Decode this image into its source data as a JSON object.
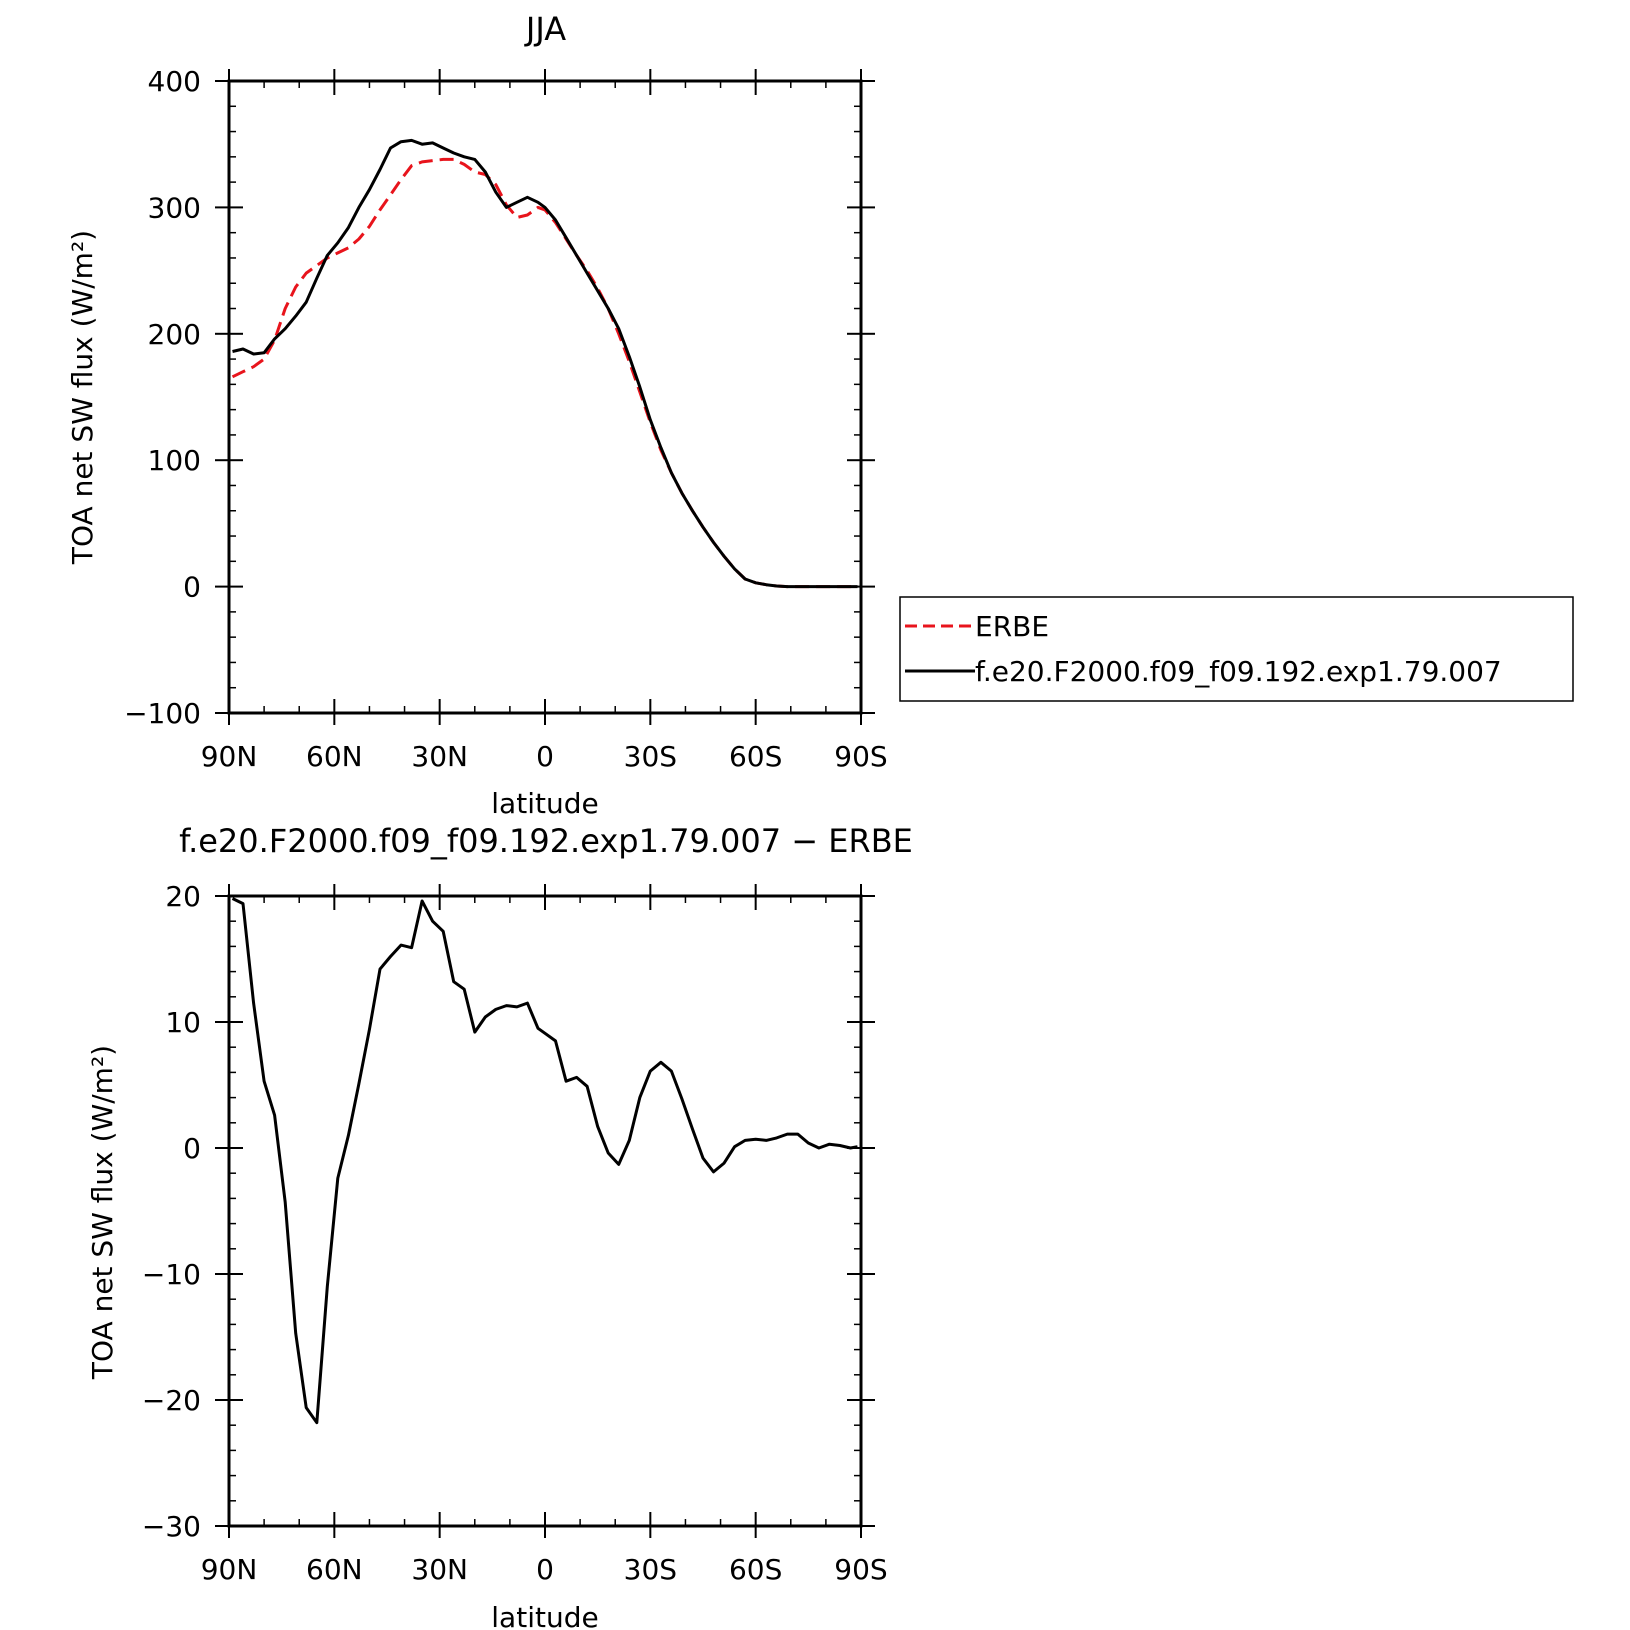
{
  "chart_data": [
    {
      "type": "line",
      "title": "JJA",
      "xlabel": "latitude",
      "ylabel": "TOA net SW flux (W/m²)",
      "ylim": [
        -100,
        400
      ],
      "yticks": [
        -100,
        0,
        100,
        200,
        300,
        400
      ],
      "xlim": [
        90,
        -90
      ],
      "xticks": [
        90,
        60,
        30,
        0,
        -30,
        -60,
        -90
      ],
      "xtick_labels": [
        "90N",
        "60N",
        "30N",
        "0",
        "30S",
        "60S",
        "90S"
      ],
      "legend": "right",
      "series": [
        {
          "name": "ERBE",
          "color": "#e8141c",
          "dash": "dashed",
          "x": [
            89,
            86,
            83,
            80,
            77,
            74,
            71,
            68,
            65,
            62,
            59,
            56,
            53,
            50,
            47,
            44,
            41,
            38,
            35,
            32,
            29,
            26,
            23,
            20,
            17,
            14,
            11,
            8,
            5,
            2,
            0,
            -3,
            -6,
            -9,
            -12,
            -15,
            -18,
            -21,
            -24,
            -27,
            -30,
            -33,
            -36,
            -39,
            -42,
            -45,
            -48,
            -51,
            -54,
            -57,
            -60,
            -63,
            -66,
            -69,
            -72,
            -75,
            -78,
            -81,
            -84,
            -87,
            -89
          ],
          "y": [
            166,
            170,
            174,
            180,
            195,
            220,
            237,
            248,
            254,
            260,
            264,
            268,
            275,
            285,
            298,
            310,
            322,
            333,
            336,
            337,
            338,
            338,
            334,
            328,
            326,
            318,
            302,
            292,
            294,
            300,
            298,
            288,
            275,
            262,
            250,
            236,
            220,
            200,
            178,
            154,
            130,
            108,
            90,
            74,
            60,
            47,
            35,
            24,
            14,
            6,
            3,
            1.5,
            0.5,
            0,
            0,
            0,
            0,
            0,
            0,
            0,
            0
          ]
        },
        {
          "name": "f.e20.F2000.f09_f09.192.exp1.79.007",
          "color": "#000000",
          "dash": "solid",
          "x": [
            89,
            86,
            83,
            80,
            77,
            74,
            71,
            68,
            65,
            62,
            59,
            56,
            53,
            50,
            47,
            44,
            41,
            38,
            35,
            32,
            29,
            26,
            23,
            20,
            17,
            14,
            11,
            8,
            5,
            2,
            0,
            -3,
            -6,
            -9,
            -12,
            -15,
            -18,
            -21,
            -24,
            -27,
            -30,
            -33,
            -36,
            -39,
            -42,
            -45,
            -48,
            -51,
            -54,
            -57,
            -60,
            -63,
            -66,
            -69,
            -72,
            -75,
            -78,
            -81,
            -84,
            -87,
            -89
          ],
          "y": [
            186,
            188,
            184,
            185,
            196,
            204,
            214,
            225,
            244,
            262,
            272,
            284,
            300,
            314,
            330,
            347,
            352,
            353,
            350,
            351,
            347,
            343,
            340,
            338,
            328,
            312,
            300,
            304,
            308,
            304,
            300,
            290,
            276,
            262,
            248,
            234,
            220,
            204,
            182,
            158,
            132,
            110,
            90,
            74,
            60,
            47,
            35,
            24,
            14,
            6,
            3,
            1.5,
            0.5,
            0,
            0,
            0,
            0,
            0,
            0,
            0,
            0
          ]
        }
      ]
    },
    {
      "type": "line",
      "title": "f.e20.F2000.f09_f09.192.exp1.79.007 − ERBE",
      "xlabel": "latitude",
      "ylabel": "TOA net SW flux (W/m²)",
      "ylim": [
        -30,
        20
      ],
      "yticks": [
        -30,
        -20,
        -10,
        0,
        10,
        20
      ],
      "xlim": [
        90,
        -90
      ],
      "xticks": [
        90,
        60,
        30,
        0,
        -30,
        -60,
        -90
      ],
      "xtick_labels": [
        "90N",
        "60N",
        "30N",
        "0",
        "30S",
        "60S",
        "90S"
      ],
      "series": [
        {
          "color": "#000000",
          "dash": "solid",
          "x": [
            89,
            86,
            83,
            80,
            77,
            74,
            71,
            68,
            65,
            62,
            59,
            56,
            53,
            50,
            47,
            44,
            41,
            38,
            35,
            32,
            29,
            26,
            23,
            20,
            17,
            14,
            11,
            8,
            5,
            2,
            0,
            -3,
            -6,
            -9,
            -12,
            -15,
            -18,
            -21,
            -24,
            -27,
            -30,
            -33,
            -36,
            -39,
            -42,
            -45,
            -48,
            -51,
            -54,
            -57,
            -60,
            -63,
            -66,
            -69,
            -72,
            -75,
            -78,
            -81,
            -84,
            -87,
            -89
          ],
          "y": [
            19.8,
            19.4,
            11.5,
            5.3,
            2.6,
            -4.3,
            -14.7,
            -20.6,
            -21.8,
            -11.0,
            -2.4,
            1.0,
            5.1,
            9.4,
            14.2,
            15.2,
            16.1,
            15.9,
            19.6,
            18.0,
            17.2,
            13.2,
            12.6,
            9.2,
            10.4,
            11.0,
            11.3,
            11.2,
            11.5,
            9.5,
            9.1,
            8.5,
            5.3,
            5.6,
            4.9,
            1.7,
            -0.4,
            -1.3,
            0.6,
            4.0,
            6.1,
            6.8,
            6.1,
            3.9,
            1.5,
            -0.8,
            -1.9,
            -1.2,
            0.1,
            0.6,
            0.7,
            0.6,
            0.8,
            1.1,
            1.1,
            0.4,
            0.0,
            0.3,
            0.2,
            0.0,
            0.1
          ]
        }
      ]
    }
  ]
}
